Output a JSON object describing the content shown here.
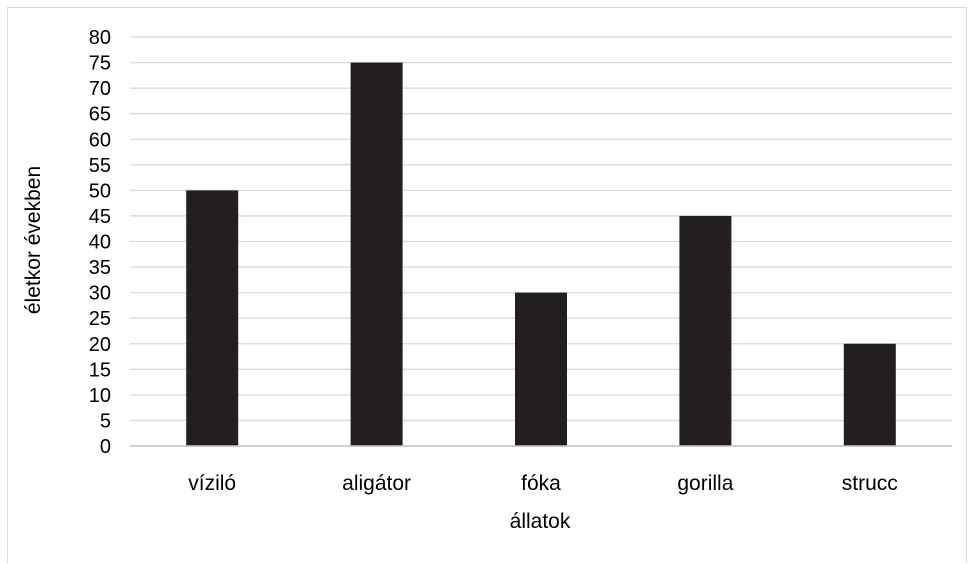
{
  "chart_data": {
    "type": "bar",
    "title": "",
    "categories": [
      "víziló",
      "aligátor",
      "fóka",
      "gorilla",
      "strucc"
    ],
    "series": [
      {
        "values": [
          50,
          75,
          30,
          45,
          20
        ]
      }
    ],
    "xlabel": "állatok",
    "ylabel": "életkor években",
    "ylim": [
      0,
      80
    ],
    "yticks": [
      0,
      5,
      10,
      15,
      20,
      25,
      30,
      35,
      40,
      45,
      50,
      55,
      60,
      65,
      70,
      75,
      80
    ],
    "grid": true,
    "legend": "none",
    "colors": {
      "bar": "#231f20",
      "grid": "#d9d9d9",
      "axis": "#bfbfbf",
      "text": "#000000"
    }
  }
}
